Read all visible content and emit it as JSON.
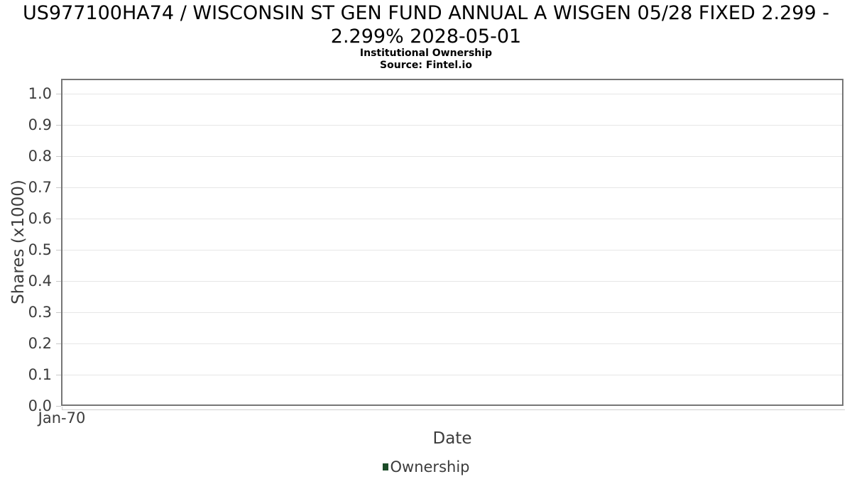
{
  "header": {
    "title": "US977100HA74 / WISCONSIN ST GEN FUND ANNUAL A WISGEN 05/28 FIXED 2.299 - 2.299% 2028-05-01",
    "subtitle": "Institutional Ownership",
    "source": "Source: Fintel.io"
  },
  "chart_data": {
    "type": "line",
    "title": "US977100HA74 / WISCONSIN ST GEN FUND ANNUAL A WISGEN 05/28 FIXED 2.299 - 2.299% 2028-05-01",
    "subtitle": "Institutional Ownership",
    "source": "Source: Fintel.io",
    "xlabel": "Date",
    "ylabel": "Shares (x1000)",
    "xticks": [
      "Jan-70"
    ],
    "yticks": [
      "0.0",
      "0.1",
      "0.2",
      "0.3",
      "0.4",
      "0.5",
      "0.6",
      "0.7",
      "0.8",
      "0.9",
      "1.0"
    ],
    "ylim": [
      0,
      1.05
    ],
    "grid": true,
    "legend_position": "bottom",
    "series": [
      {
        "name": "Ownership",
        "color": "#1c4c28",
        "x": [],
        "values": []
      }
    ]
  },
  "colors": {
    "ownership_series": "#1c4c28",
    "axis_border": "#767676",
    "gridline": "#e6e6e6",
    "axis_text": "#3c3c3c",
    "title_text": "#000000"
  }
}
